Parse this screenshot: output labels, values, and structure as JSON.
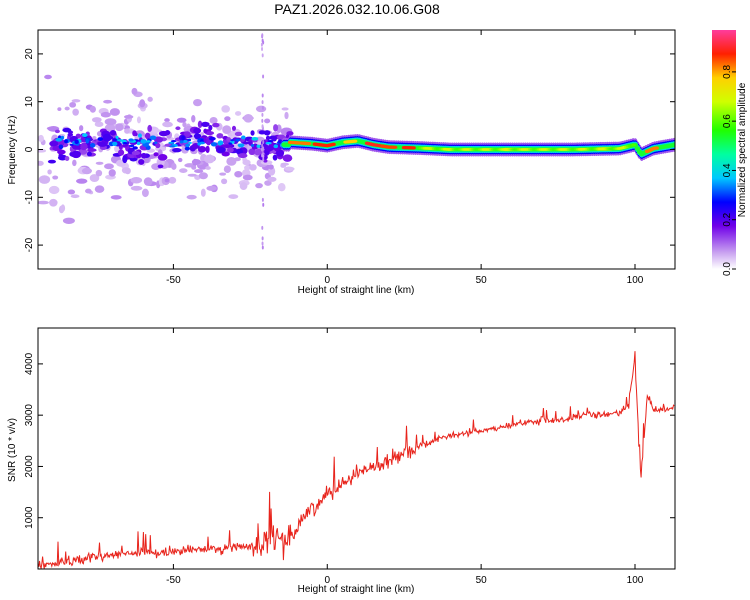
{
  "title": "PAZ1.2026.032.10.06.G08",
  "chart_data": [
    {
      "type": "heatmap",
      "xlabel": "Height of straight line (km)",
      "ylabel": "Frequency (Hz)",
      "xlim": [
        -94,
        113
      ],
      "ylim": [
        -25,
        25
      ],
      "xticks": [
        -50,
        0,
        50,
        100
      ],
      "xtick_labels": [
        "-50",
        "0",
        "50",
        "100"
      ],
      "yticks": [
        -20,
        -10,
        0,
        10,
        20
      ],
      "ytick_labels": [
        "-20",
        "-10",
        "0",
        "10",
        "20"
      ],
      "colorbar": {
        "label": "Normalized spectral amplitude",
        "range": [
          0,
          0.97
        ],
        "ticks": [
          0.0,
          0.2,
          0.4,
          0.6,
          0.8
        ],
        "tick_labels": [
          "0.0",
          "0.2",
          "0.4",
          "0.6",
          "0.8"
        ]
      },
      "ridge": [
        {
          "x": -12,
          "y": 1.5
        },
        {
          "x": -5,
          "y": 1.2
        },
        {
          "x": 0,
          "y": 0.8
        },
        {
          "x": 5,
          "y": 1.5
        },
        {
          "x": 10,
          "y": 1.8
        },
        {
          "x": 15,
          "y": 1.0
        },
        {
          "x": 20,
          "y": 0.5
        },
        {
          "x": 30,
          "y": 0.3
        },
        {
          "x": 40,
          "y": 0.0
        },
        {
          "x": 60,
          "y": 0.0
        },
        {
          "x": 80,
          "y": 0.0
        },
        {
          "x": 95,
          "y": 0.2
        },
        {
          "x": 100,
          "y": 1.0
        },
        {
          "x": 102,
          "y": -1.0
        },
        {
          "x": 106,
          "y": 0.2
        },
        {
          "x": 113,
          "y": 1.0
        }
      ]
    },
    {
      "type": "line",
      "xlabel": "Height of straight line (km)",
      "ylabel": "SNR (10 * v/v)",
      "xlim": [
        -94,
        113
      ],
      "ylim": [
        0,
        4700
      ],
      "xticks": [
        -50,
        0,
        50,
        100
      ],
      "xtick_labels": [
        "-50",
        "0",
        "50",
        "100"
      ],
      "yticks": [
        1000,
        2000,
        3000,
        4000
      ],
      "ytick_labels": [
        "1000",
        "2000",
        "3000",
        "4000"
      ],
      "series": [
        {
          "name": "SNR",
          "color": "#e8241c",
          "x": [
            -94,
            -85,
            -75,
            -65,
            -55,
            -45,
            -35,
            -25,
            -20,
            -15,
            -12,
            -10,
            -8,
            -5,
            -2,
            0,
            3,
            5,
            8,
            10,
            15,
            20,
            25,
            30,
            35,
            40,
            45,
            50,
            55,
            60,
            65,
            70,
            75,
            80,
            85,
            90,
            95,
            98,
            100,
            101,
            102,
            103,
            104,
            106,
            110,
            113
          ],
          "values": [
            50,
            150,
            250,
            300,
            320,
            360,
            400,
            450,
            500,
            550,
            620,
            800,
            1000,
            1200,
            1300,
            1500,
            1600,
            1700,
            1800,
            1900,
            2000,
            2100,
            2300,
            2400,
            2500,
            2600,
            2650,
            2700,
            2750,
            2800,
            2850,
            2900,
            2900,
            2950,
            3000,
            3000,
            3050,
            3200,
            4200,
            2800,
            1800,
            2600,
            3400,
            3100,
            3100,
            3150
          ]
        }
      ]
    }
  ]
}
